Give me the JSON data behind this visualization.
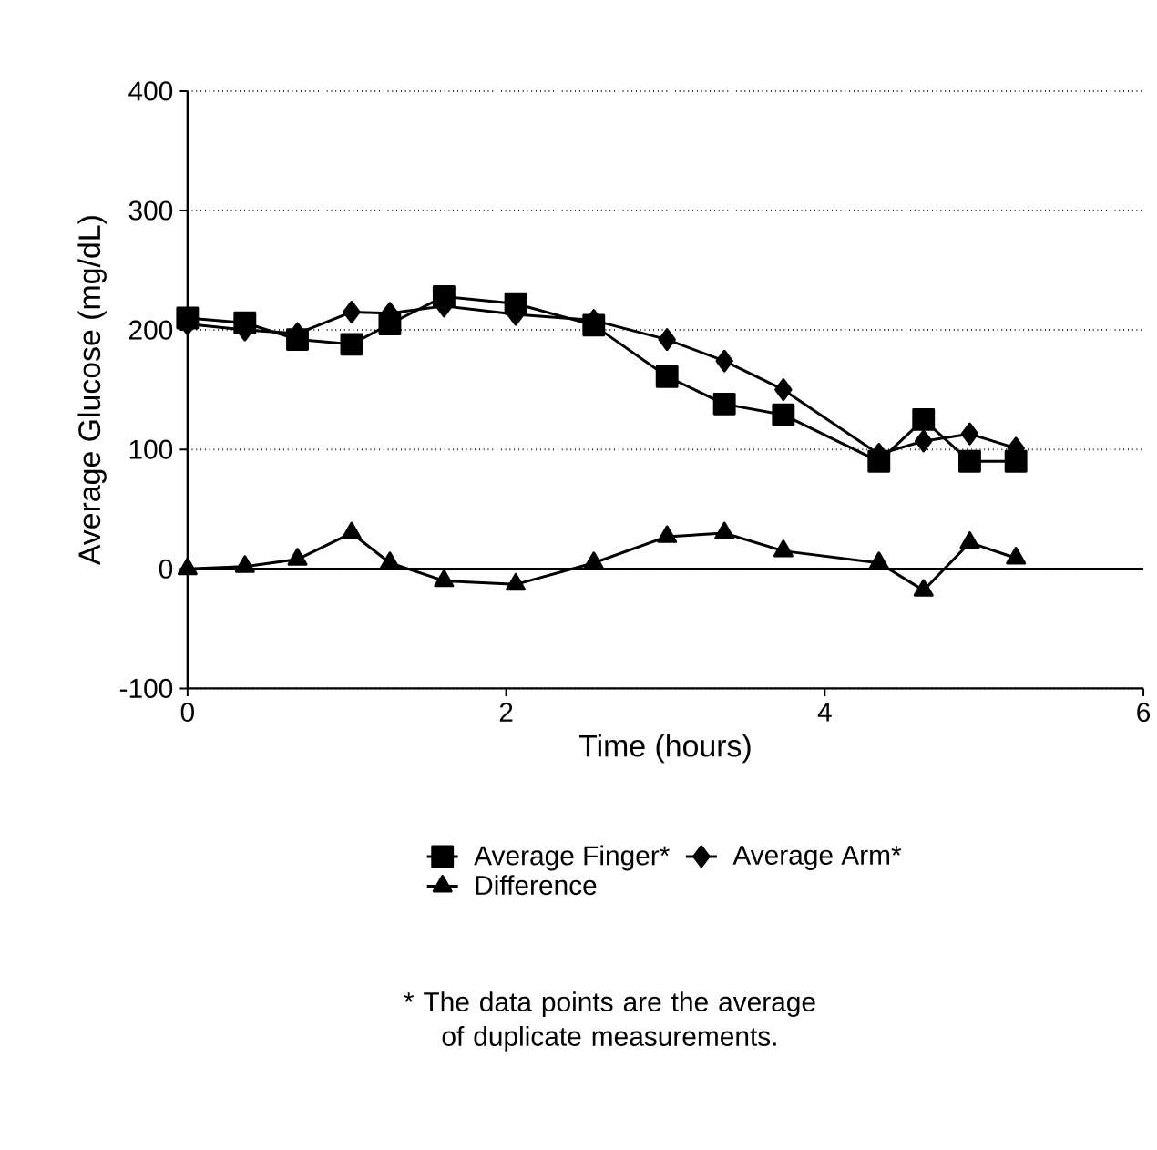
{
  "chart_data": {
    "type": "line",
    "xlabel": "Time (hours)",
    "ylabel": "Average Glucose (mg/dL)",
    "x": [
      0,
      0.36,
      0.69,
      1.03,
      1.27,
      1.61,
      2.06,
      2.55,
      3.01,
      3.37,
      3.74,
      4.34,
      4.62,
      4.91,
      5.2
    ],
    "series": [
      {
        "name": "Average Finger*",
        "color": "#000000",
        "marker": "square",
        "values": [
          210,
          206,
          192,
          188,
          205,
          228,
          222,
          204,
          161,
          138,
          129,
          90,
          125,
          90,
          90
        ]
      },
      {
        "name": "Average Arm*",
        "color": "#000000",
        "marker": "diamond",
        "values": [
          205,
          200,
          197,
          215,
          214,
          220,
          213,
          208,
          192,
          174,
          150,
          96,
          107,
          113,
          101
        ]
      },
      {
        "name": "Difference",
        "color": "#000000",
        "marker": "triangle",
        "values": [
          0,
          2,
          8,
          30,
          5,
          -10,
          -13,
          5,
          27,
          30,
          15,
          5,
          -18,
          22,
          9
        ]
      }
    ],
    "xlim": [
      0,
      6
    ],
    "xticks": [
      0,
      2,
      4,
      6
    ],
    "ylim": [
      -100,
      400
    ],
    "yticks": [
      -100,
      0,
      100,
      200,
      300,
      400
    ],
    "grid": "y",
    "line_style": "solid",
    "legend": "bottom",
    "ref_lines": [
      {
        "axis": "y",
        "value": 0
      }
    ],
    "annotations": [
      "* The data points are the average of duplicate measurements."
    ]
  }
}
